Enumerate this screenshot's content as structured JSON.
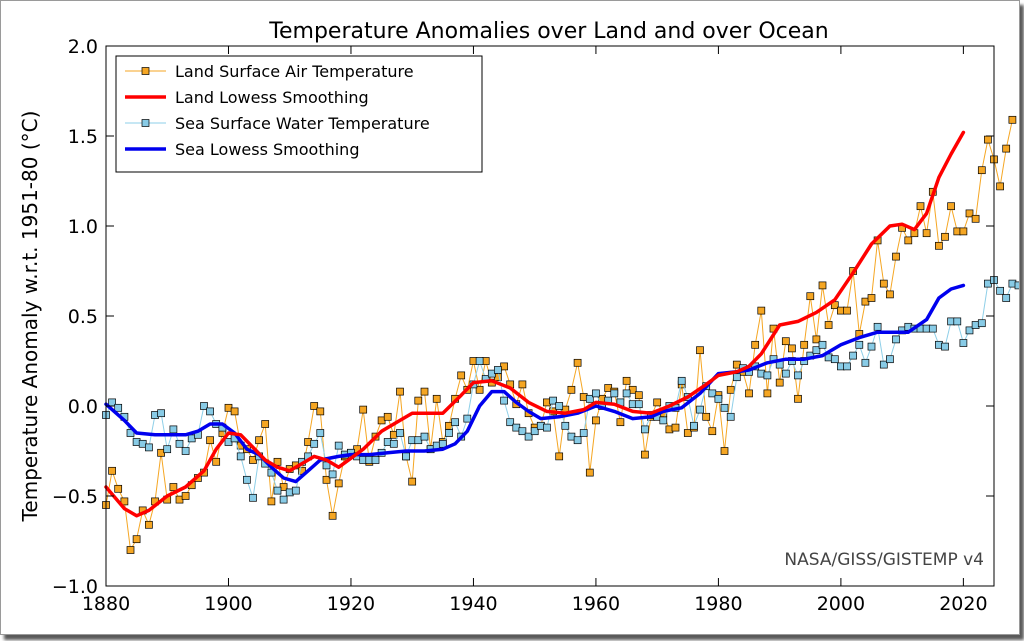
{
  "chart_data": {
    "type": "line",
    "title": "Temperature Anomalies over Land and over Ocean",
    "xlabel": "",
    "ylabel": "Temperature Anomaly w.r.t. 1951-80 (°C)",
    "xlim": [
      1880,
      2025
    ],
    "ylim": [
      -1.0,
      2.0
    ],
    "xticks": [
      1880,
      1900,
      1920,
      1940,
      1960,
      1980,
      2000,
      2020
    ],
    "xtick_labels": [
      "1880",
      "1900",
      "1920",
      "1940",
      "1960",
      "1980",
      "2000",
      "2020"
    ],
    "yticks": [
      -1.0,
      -0.5,
      0.0,
      0.5,
      1.0,
      1.5,
      2.0
    ],
    "ytick_labels": [
      "−1.0",
      "−0.5",
      "0.0",
      "0.5",
      "1.0",
      "1.5",
      "2.0"
    ],
    "grid": false,
    "legend_position": "top-left",
    "annotation": "NASA/GISS/GISTEMP v4",
    "series": [
      {
        "name": "Land Surface Air Temperature",
        "style": "markers-line",
        "color": "#f5a623",
        "marker_fill": "#f5a623",
        "x_start": 1880,
        "values": [
          -0.55,
          -0.36,
          -0.46,
          -0.53,
          -0.8,
          -0.74,
          -0.58,
          -0.66,
          -0.53,
          -0.26,
          -0.52,
          -0.45,
          -0.52,
          -0.5,
          -0.44,
          -0.4,
          -0.37,
          -0.19,
          -0.31,
          -0.15,
          -0.01,
          -0.03,
          -0.22,
          -0.24,
          -0.3,
          -0.19,
          -0.1,
          -0.53,
          -0.31,
          -0.45,
          -0.35,
          -0.33,
          -0.36,
          -0.2,
          0.0,
          -0.03,
          -0.41,
          -0.61,
          -0.43,
          -0.28,
          -0.26,
          -0.24,
          -0.02,
          -0.31,
          -0.17,
          -0.08,
          -0.06,
          -0.16,
          0.08,
          -0.28,
          -0.42,
          0.03,
          0.08,
          -0.24,
          0.04,
          -0.2,
          -0.11,
          0.04,
          0.17,
          0.09,
          0.25,
          0.09,
          0.25,
          0.13,
          0.16,
          0.22,
          0.12,
          0.01,
          0.12,
          -0.04,
          -0.12,
          -0.11,
          0.02,
          -0.03,
          -0.28,
          -0.02,
          0.09,
          0.24,
          0.05,
          -0.37,
          -0.08,
          0.04,
          0.1,
          0.08,
          -0.09,
          0.14,
          0.09,
          0.06,
          -0.27,
          -0.06,
          0.02,
          -0.04,
          -0.13,
          -0.12,
          0.12,
          -0.15,
          -0.12,
          0.31,
          -0.06,
          -0.14,
          0.06,
          -0.25,
          0.09,
          0.23,
          0.19,
          0.07,
          0.34,
          0.53,
          0.07,
          0.43,
          0.13,
          0.36,
          0.32,
          0.04,
          0.34,
          0.61,
          0.37,
          0.67,
          0.45,
          0.56,
          0.53,
          0.53,
          0.75,
          0.4,
          0.58,
          0.6,
          0.92,
          0.68,
          0.62,
          0.83,
          0.99,
          0.92,
          0.96,
          1.11,
          0.96,
          1.19,
          0.89,
          0.94,
          1.11,
          0.97,
          0.97,
          1.07,
          1.04,
          1.31,
          1.48,
          1.37,
          1.22,
          1.43,
          1.59
        ]
      },
      {
        "name": "Land Lowess Smoothing",
        "style": "line",
        "color": "#ff0000",
        "x": [
          1880,
          1883,
          1885,
          1887,
          1890,
          1893,
          1896,
          1898,
          1900,
          1902,
          1904,
          1906,
          1908,
          1910,
          1912,
          1914,
          1916,
          1918,
          1920,
          1922,
          1925,
          1928,
          1930,
          1935,
          1938,
          1940,
          1943,
          1946,
          1949,
          1952,
          1955,
          1958,
          1960,
          1963,
          1966,
          1969,
          1972,
          1975,
          1978,
          1980,
          1983,
          1985,
          1987,
          1990,
          1993,
          1996,
          1999,
          2002,
          2005,
          2008,
          2010,
          2012,
          2014,
          2016,
          2018,
          2020
        ],
        "values": [
          -0.45,
          -0.57,
          -0.61,
          -0.58,
          -0.5,
          -0.45,
          -0.36,
          -0.24,
          -0.15,
          -0.16,
          -0.23,
          -0.3,
          -0.34,
          -0.36,
          -0.32,
          -0.28,
          -0.3,
          -0.34,
          -0.29,
          -0.24,
          -0.14,
          -0.08,
          -0.04,
          -0.04,
          0.06,
          0.13,
          0.14,
          0.1,
          0.02,
          -0.03,
          -0.04,
          -0.02,
          0.02,
          0.01,
          -0.03,
          -0.04,
          0.0,
          0.05,
          0.12,
          0.17,
          0.19,
          0.22,
          0.29,
          0.45,
          0.47,
          0.52,
          0.59,
          0.74,
          0.9,
          1.0,
          1.01,
          0.98,
          1.07,
          1.27,
          1.4,
          1.52
        ]
      },
      {
        "name": "Sea Surface Water Temperature",
        "style": "markers-line",
        "color": "#8ecfe8",
        "marker_fill": "#88cbe6",
        "x_start": 1880,
        "values": [
          -0.05,
          0.02,
          -0.01,
          -0.06,
          -0.15,
          -0.2,
          -0.21,
          -0.23,
          -0.05,
          -0.04,
          -0.24,
          -0.13,
          -0.21,
          -0.25,
          -0.18,
          -0.16,
          0.0,
          -0.03,
          -0.1,
          -0.12,
          -0.2,
          -0.18,
          -0.28,
          -0.41,
          -0.51,
          -0.28,
          -0.32,
          -0.37,
          -0.47,
          -0.52,
          -0.48,
          -0.47,
          -0.31,
          -0.28,
          -0.21,
          -0.15,
          -0.33,
          -0.38,
          -0.22,
          -0.27,
          -0.26,
          -0.28,
          -0.3,
          -0.3,
          -0.3,
          -0.26,
          -0.2,
          -0.21,
          -0.15,
          -0.28,
          -0.19,
          -0.19,
          -0.17,
          -0.24,
          -0.22,
          -0.21,
          -0.15,
          -0.09,
          -0.17,
          -0.07,
          0.12,
          0.25,
          0.15,
          0.18,
          0.2,
          0.03,
          -0.09,
          -0.12,
          -0.14,
          -0.17,
          -0.14,
          -0.11,
          -0.12,
          0.03,
          0.0,
          -0.11,
          -0.17,
          -0.19,
          -0.15,
          0.04,
          0.07,
          0.0,
          0.03,
          0.07,
          0.02,
          0.07,
          0.01,
          0.01,
          -0.13,
          -0.05,
          -0.06,
          -0.08,
          0.0,
          -0.01,
          0.14,
          0.05,
          -0.11,
          -0.02,
          0.11,
          0.07,
          0.04,
          -0.01,
          -0.06,
          0.16,
          0.21,
          0.19,
          0.22,
          0.18,
          0.17,
          0.26,
          0.23,
          0.18,
          0.25,
          0.17,
          0.25,
          0.28,
          0.31,
          0.34,
          0.27,
          0.26,
          0.22,
          0.22,
          0.28,
          0.34,
          0.24,
          0.33,
          0.44,
          0.23,
          0.26,
          0.37,
          0.42,
          0.44,
          0.43,
          0.43,
          0.43,
          0.43,
          0.34,
          0.33,
          0.47,
          0.47,
          0.35,
          0.42,
          0.45,
          0.46,
          0.68,
          0.7,
          0.64,
          0.6,
          0.68,
          0.67
        ]
      },
      {
        "name": "Sea Lowess Smoothing",
        "style": "line",
        "color": "#0000ee",
        "x": [
          1880,
          1883,
          1885,
          1888,
          1890,
          1893,
          1895,
          1897,
          1899,
          1901,
          1903,
          1905,
          1907,
          1909,
          1911,
          1913,
          1915,
          1918,
          1920,
          1923,
          1926,
          1929,
          1932,
          1935,
          1937,
          1939,
          1941,
          1943,
          1945,
          1947,
          1949,
          1951,
          1954,
          1957,
          1960,
          1963,
          1966,
          1969,
          1971,
          1974,
          1977,
          1980,
          1983,
          1985,
          1988,
          1991,
          1994,
          1997,
          2000,
          2003,
          2006,
          2009,
          2011,
          2014,
          2016,
          2018,
          2020
        ],
        "values": [
          0.01,
          -0.08,
          -0.15,
          -0.16,
          -0.16,
          -0.16,
          -0.14,
          -0.1,
          -0.1,
          -0.15,
          -0.24,
          -0.27,
          -0.34,
          -0.4,
          -0.42,
          -0.36,
          -0.3,
          -0.28,
          -0.27,
          -0.27,
          -0.26,
          -0.25,
          -0.25,
          -0.24,
          -0.21,
          -0.14,
          0.0,
          0.08,
          0.08,
          0.02,
          -0.03,
          -0.07,
          -0.06,
          -0.04,
          0.0,
          -0.03,
          -0.07,
          -0.06,
          -0.03,
          -0.01,
          0.07,
          0.18,
          0.19,
          0.2,
          0.24,
          0.26,
          0.26,
          0.28,
          0.34,
          0.38,
          0.41,
          0.41,
          0.41,
          0.48,
          0.6,
          0.65,
          0.67
        ]
      }
    ]
  }
}
